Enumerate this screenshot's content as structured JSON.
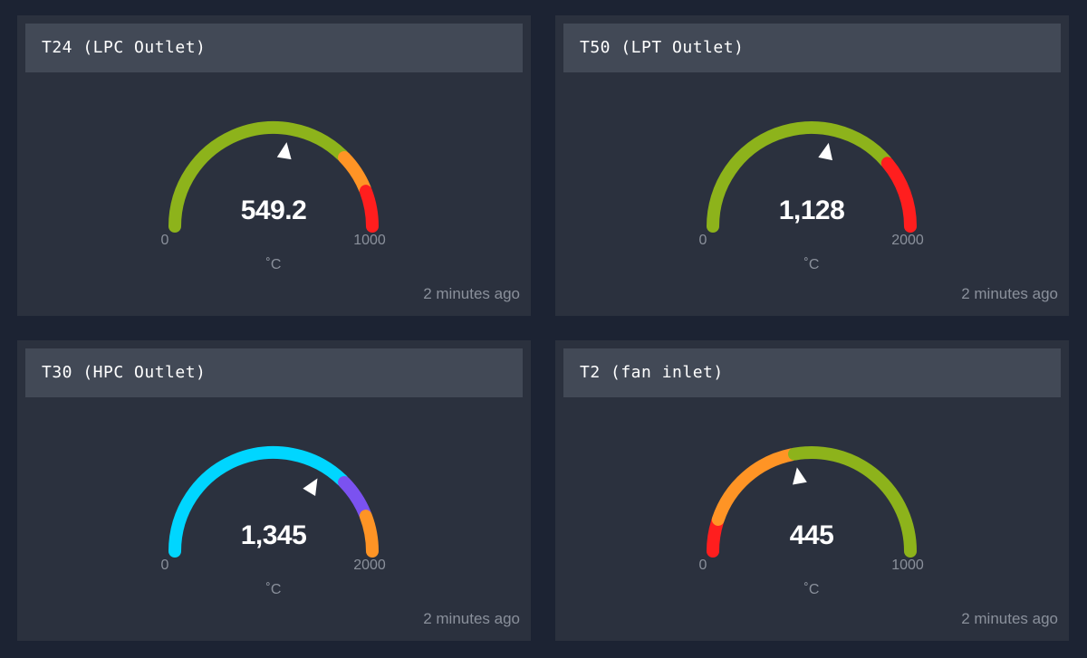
{
  "panels": [
    {
      "title": "T24 (LPC Outlet)",
      "value_text": "549.2",
      "value": 549.2,
      "min": 0,
      "max": 1000,
      "min_label": "0",
      "max_label": "1000",
      "unit": "˚C",
      "timestamp": "2 minutes ago",
      "bands": [
        {
          "from": 0,
          "to": 750,
          "color": "#8db31b"
        },
        {
          "from": 750,
          "to": 880,
          "color": "#ff9425"
        },
        {
          "from": 880,
          "to": 1000,
          "color": "#ff1e1e"
        }
      ]
    },
    {
      "title": "T50 (LPT Outlet)",
      "value_text": "1,128",
      "value": 1128,
      "min": 0,
      "max": 2000,
      "min_label": "0",
      "max_label": "2000",
      "unit": "˚C",
      "timestamp": "2 minutes ago",
      "bands": [
        {
          "from": 0,
          "to": 1550,
          "color": "#8db31b"
        },
        {
          "from": 1550,
          "to": 2000,
          "color": "#ff1e1e"
        }
      ]
    },
    {
      "title": "T30 (HPC Outlet)",
      "value_text": "1,345",
      "value": 1345,
      "min": 0,
      "max": 2000,
      "min_label": "0",
      "max_label": "2000",
      "unit": "˚C",
      "timestamp": "2 minutes ago",
      "bands": [
        {
          "from": 0,
          "to": 1500,
          "color": "#00d6ff"
        },
        {
          "from": 1500,
          "to": 1760,
          "color": "#7b52f0"
        },
        {
          "from": 1760,
          "to": 2000,
          "color": "#ff9425"
        }
      ]
    },
    {
      "title": "T2 (fan inlet)",
      "value_text": "445",
      "value": 445,
      "min": 0,
      "max": 1000,
      "min_label": "0",
      "max_label": "1000",
      "unit": "˚C",
      "timestamp": "2 minutes ago",
      "bands": [
        {
          "from": 0,
          "to": 100,
          "color": "#ff1e1e"
        },
        {
          "from": 100,
          "to": 440,
          "color": "#ff9425"
        },
        {
          "from": 440,
          "to": 1000,
          "color": "#8db31b"
        }
      ]
    }
  ]
}
